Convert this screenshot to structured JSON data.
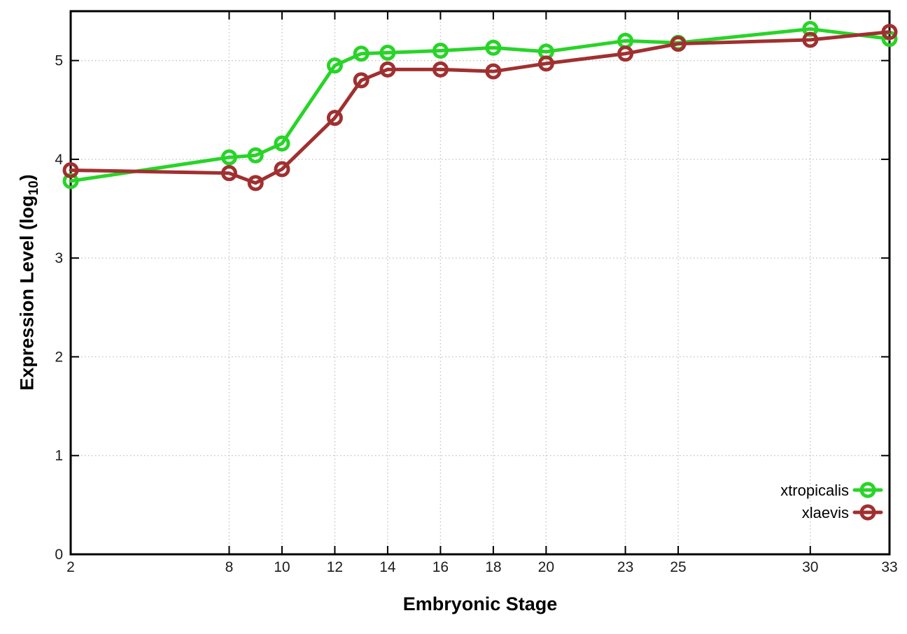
{
  "chart_data": {
    "type": "line",
    "x": [
      2,
      8,
      9,
      10,
      12,
      13,
      14,
      16,
      18,
      20,
      23,
      25,
      30,
      33
    ],
    "series": [
      {
        "name": "xtropicalis",
        "color": "#28d428",
        "marker": "open-circle",
        "values": [
          3.78,
          4.02,
          4.04,
          4.16,
          4.95,
          5.07,
          5.08,
          5.1,
          5.13,
          5.09,
          5.2,
          5.18,
          5.32,
          5.22
        ]
      },
      {
        "name": "xlaevis",
        "color": "#a03030",
        "marker": "open-circle",
        "values": [
          3.89,
          3.86,
          3.76,
          3.9,
          4.42,
          4.8,
          4.91,
          4.91,
          4.89,
          4.97,
          5.07,
          5.17,
          5.21,
          5.29
        ]
      }
    ],
    "xlabel": "Embryonic Stage",
    "ylabel": "Expression Level (log10)",
    "ylabel_parts": {
      "base": "Expression Level (log",
      "sub": "10",
      "close": ")"
    },
    "xlim": [
      2,
      33
    ],
    "ylim": [
      0,
      5.5
    ],
    "x_ticks": [
      2,
      8,
      10,
      12,
      14,
      16,
      18,
      20,
      23,
      25,
      30,
      33
    ],
    "y_ticks": [
      0,
      1,
      2,
      3,
      4,
      5
    ],
    "grid": true,
    "legend_position": "bottom-right",
    "colors": {
      "axis": "#000000",
      "grid": "#c4c4c4",
      "tick_label": "#1c1c1c",
      "legend_text": "#000000",
      "background": "#ffffff"
    }
  }
}
